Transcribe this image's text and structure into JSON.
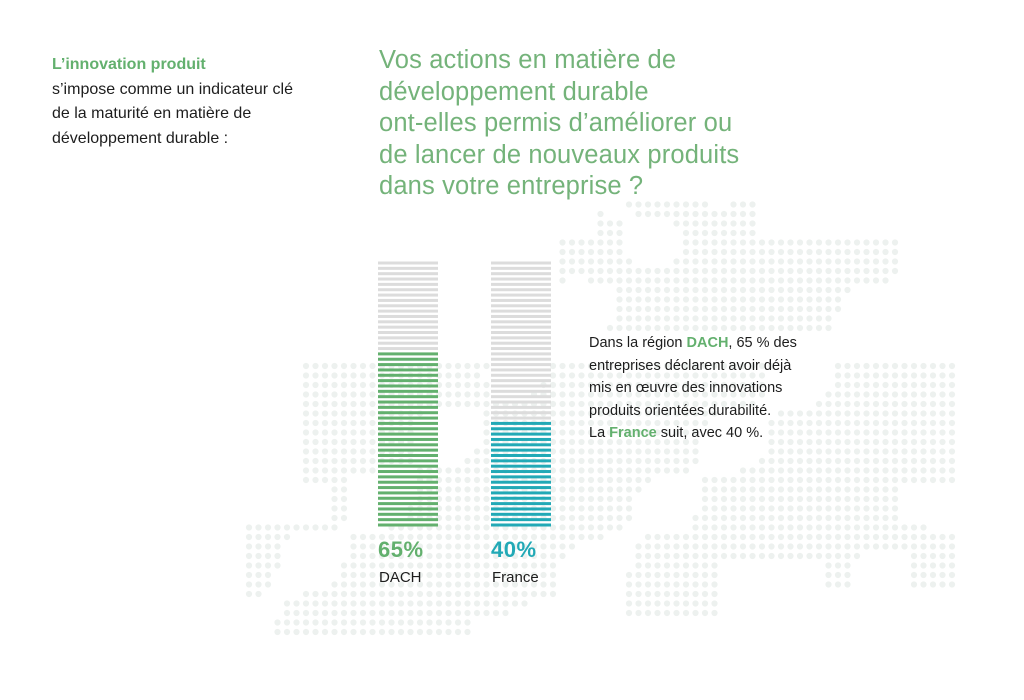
{
  "colors": {
    "green": "#63b06e",
    "teal": "#22a9b6",
    "empty": "#dcdcdc",
    "map_dot": "#edf1ef"
  },
  "intro": {
    "highlight": "L’innovation produit",
    "rest": "s’impose comme un indicateur clé de la maturité en matière de développement durable :"
  },
  "question": {
    "lines": [
      "Vos actions en matière de",
      "développement durable",
      "ont-elles permis d’améliorer ou",
      "de lancer de nouveaux produits",
      "dans votre entreprise ?"
    ]
  },
  "note": {
    "l1_pre": "Dans la région ",
    "l1_hl": "DACH",
    "l1_post": ", 65 % des",
    "l2": "entreprises déclarent avoir déjà",
    "l3": "mis en œuvre des innovations",
    "l4": "produits orientées durabilité.",
    "l5_pre": "La ",
    "l5_hl": "France",
    "l5_post": " suit, avec 40 %."
  },
  "chart_data": {
    "type": "bar",
    "categories": [
      "DACH",
      "France"
    ],
    "values": [
      65,
      40
    ],
    "value_labels": [
      "65%",
      "40%"
    ],
    "ylim": [
      0,
      100
    ],
    "series_colors": [
      "#63b06e",
      "#22a9b6"
    ]
  }
}
